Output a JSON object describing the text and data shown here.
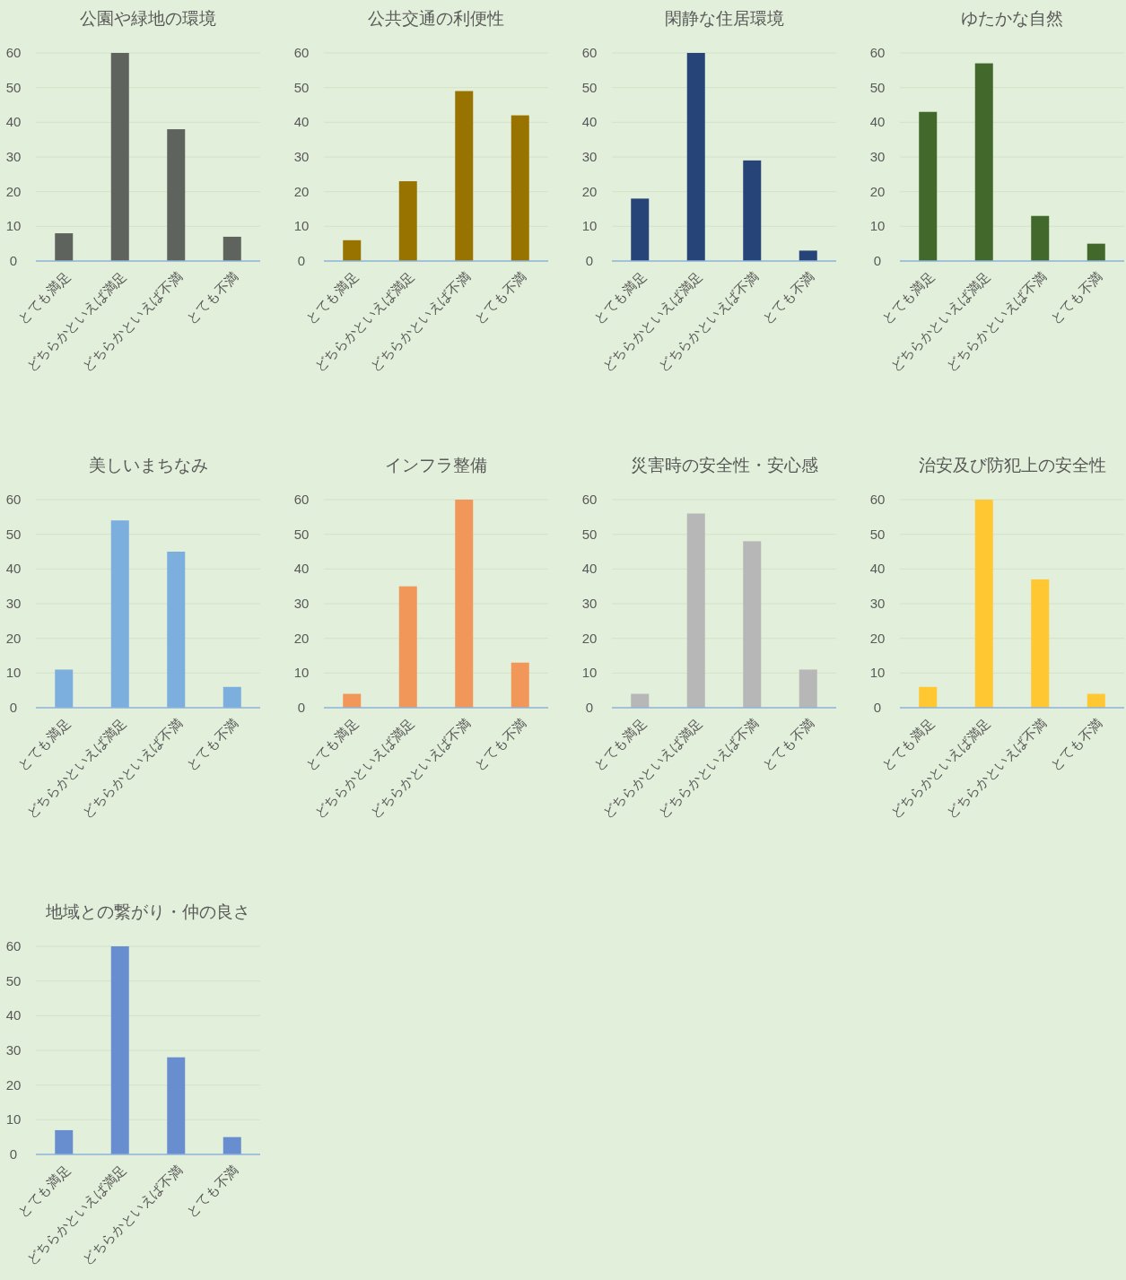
{
  "chart_data": [
    {
      "type": "bar",
      "title": "公園や緑地の環境",
      "categories": [
        "とても満足",
        "どちらかといえば満足",
        "どちらかといえば不満",
        "とても不満"
      ],
      "values": [
        8,
        60,
        38,
        7
      ],
      "color": "#5f635d",
      "ylim": [
        0,
        60
      ],
      "yticks": [
        0,
        10,
        20,
        30,
        40,
        50,
        60
      ],
      "grid": "y"
    },
    {
      "type": "bar",
      "title": "公共交通の利便性",
      "categories": [
        "とても満足",
        "どちらかといえば満足",
        "どちらかといえば不満",
        "とても不満"
      ],
      "values": [
        6,
        23,
        49,
        42
      ],
      "color": "#997300",
      "ylim": [
        0,
        60
      ],
      "yticks": [
        0,
        10,
        20,
        30,
        40,
        50,
        60
      ],
      "grid": "y"
    },
    {
      "type": "bar",
      "title": "閑静な住居環境",
      "categories": [
        "とても満足",
        "どちらかといえば満足",
        "どちらかといえば不満",
        "とても不満"
      ],
      "values": [
        18,
        60,
        29,
        3
      ],
      "color": "#264478",
      "ylim": [
        0,
        60
      ],
      "yticks": [
        0,
        10,
        20,
        30,
        40,
        50,
        60
      ],
      "grid": "y"
    },
    {
      "type": "bar",
      "title": "ゆたかな自然",
      "categories": [
        "とても満足",
        "どちらかといえば満足",
        "どちらかといえば不満",
        "とても不満"
      ],
      "values": [
        43,
        57,
        13,
        5
      ],
      "color": "#43682b",
      "ylim": [
        0,
        60
      ],
      "yticks": [
        0,
        10,
        20,
        30,
        40,
        50,
        60
      ],
      "grid": "y"
    },
    {
      "type": "bar",
      "title": "美しいまちなみ",
      "categories": [
        "とても満足",
        "どちらかといえば満足",
        "どちらかといえば不満",
        "とても不満"
      ],
      "values": [
        11,
        54,
        45,
        6
      ],
      "color": "#7cafdd",
      "ylim": [
        0,
        60
      ],
      "yticks": [
        0,
        10,
        20,
        30,
        40,
        50,
        60
      ],
      "grid": "y"
    },
    {
      "type": "bar",
      "title": "インフラ整備",
      "categories": [
        "とても満足",
        "どちらかといえば満足",
        "どちらかといえば不満",
        "とても不満"
      ],
      "values": [
        4,
        35,
        60,
        13
      ],
      "color": "#f1975a",
      "ylim": [
        0,
        60
      ],
      "yticks": [
        0,
        10,
        20,
        30,
        40,
        50,
        60
      ],
      "grid": "y"
    },
    {
      "type": "bar",
      "title": "災害時の安全性・安心感",
      "categories": [
        "とても満足",
        "どちらかといえば満足",
        "どちらかといえば不満",
        "とても不満"
      ],
      "values": [
        4,
        56,
        48,
        11
      ],
      "color": "#b7b7b7",
      "ylim": [
        0,
        60
      ],
      "yticks": [
        0,
        10,
        20,
        30,
        40,
        50,
        60
      ],
      "grid": "y"
    },
    {
      "type": "bar",
      "title": "治安及び防犯上の安全性",
      "categories": [
        "とても満足",
        "どちらかといえば満足",
        "どちらかといえば不満",
        "とても不満"
      ],
      "values": [
        6,
        60,
        37,
        4
      ],
      "color": "#ffc832",
      "ylim": [
        0,
        60
      ],
      "yticks": [
        0,
        10,
        20,
        30,
        40,
        50,
        60
      ],
      "grid": "y"
    },
    {
      "type": "bar",
      "title": "地域との繋がり・仲の良さ",
      "categories": [
        "とても満足",
        "どちらかといえば満足",
        "どちらかといえば不満",
        "とても不満"
      ],
      "values": [
        7,
        60,
        28,
        5
      ],
      "color": "#698ed0",
      "ylim": [
        0,
        60
      ],
      "yticks": [
        0,
        10,
        20,
        30,
        40,
        50,
        60
      ],
      "grid": "y"
    }
  ]
}
